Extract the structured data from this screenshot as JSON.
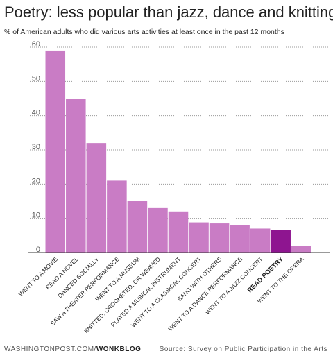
{
  "chart_data": {
    "type": "bar",
    "title": "Poetry: less popular than jazz, dance and knitting",
    "subtitle": "% of American adults who did various arts activities at least once in the past 12 months",
    "categories": [
      "WENT TO A MOVIE",
      "READ A NOVEL",
      "DANCED SOCIALLY",
      "SAW A THEATER PERFORMANCE",
      "WENT TO A MUSEUM",
      "KNITTED, CROCHETED, OR WEAVED",
      "PLAYED A MUSICAL INSTRUMENT",
      "WENT TO A CLASSICAL CONCERT",
      "SANG WITH OTHERS",
      "WENT TO A DANCE PERFORMANCE",
      "WENT TO A JAZZ CONCERT",
      "READ POETRY",
      "WENT TO THE OPERA"
    ],
    "values": [
      59,
      45,
      32,
      21,
      15,
      13,
      12,
      8.8,
      8.5,
      8,
      7,
      6.5,
      2
    ],
    "color": "#c97cc5",
    "colors": [
      "#c97cc5",
      "#c97cc5",
      "#c97cc5",
      "#c97cc5",
      "#c97cc5",
      "#c97cc5",
      "#c97cc5",
      "#c97cc5",
      "#c97cc5",
      "#c97cc5",
      "#c97cc5",
      "#8e1590",
      "#c97cc5"
    ],
    "ylim": [
      0,
      60
    ],
    "yticks": [
      0,
      10,
      20,
      30,
      40,
      50,
      60
    ],
    "grid": true,
    "footer": {
      "site": "WASHINGTONPOST.COM/",
      "blog": "WONKBLOG",
      "source": "Source: Survey on Public Participation in the Arts"
    }
  }
}
